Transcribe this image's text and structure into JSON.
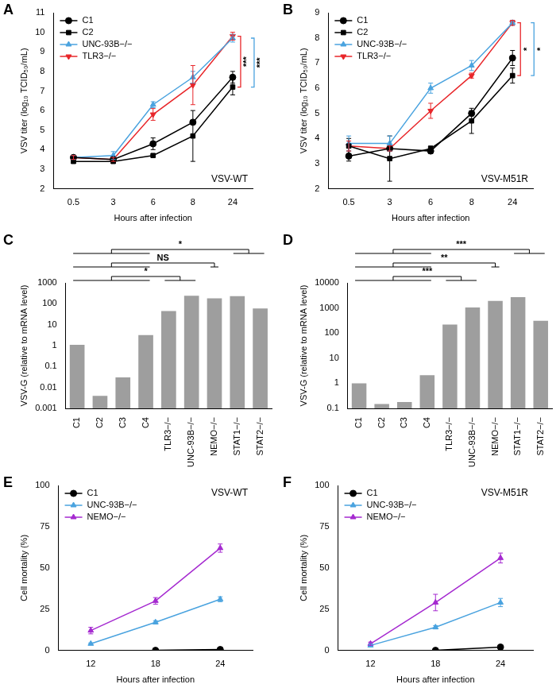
{
  "chart_data": [
    {
      "panel_label": "A",
      "type": "line",
      "title": "VSV-WT",
      "x_label": "Hours after infection",
      "y_label": "VSV titer (log₁₀ TCID₅₀/mL)",
      "categories": [
        "0.5",
        "3",
        "6",
        "8",
        "24"
      ],
      "ylim": [
        2,
        11
      ],
      "yticks": [
        2,
        3,
        4,
        5,
        6,
        7,
        8,
        9,
        10,
        11
      ],
      "grid": false,
      "legend": "top-left",
      "series": [
        {
          "name": "C1",
          "color": "#000000",
          "marker": "circle",
          "values": [
            3.6,
            3.5,
            4.3,
            5.4,
            7.7
          ],
          "errors": [
            0.1,
            0.1,
            0.3,
            0.1,
            0.3
          ]
        },
        {
          "name": "C2",
          "color": "#000000",
          "marker": "square",
          "values": [
            3.4,
            3.4,
            3.7,
            4.7,
            7.2
          ],
          "errors": [
            0.1,
            0.1,
            0.05,
            1.3,
            0.4
          ]
        },
        {
          "name": "UNC-93B−/−",
          "color": "#4aa3df",
          "marker": "triangle",
          "values": [
            3.6,
            3.7,
            6.3,
            7.7,
            9.7
          ],
          "errors": [
            0.1,
            0.2,
            0.15,
            0.3,
            0.2
          ]
        },
        {
          "name": "TLR3−/−",
          "color": "#e8262a",
          "marker": "triangle-down",
          "values": [
            3.6,
            3.5,
            5.8,
            7.3,
            9.8
          ],
          "errors": [
            0.1,
            0.1,
            0.3,
            1.0,
            0.2
          ]
        }
      ],
      "comparisons": [
        {
          "text": "***",
          "color": "#e8262a",
          "between": [
            "TLR3−/−",
            "C2"
          ]
        },
        {
          "text": "***",
          "color": "#4aa3df",
          "between": [
            "UNC-93B−/−",
            "C2"
          ]
        }
      ]
    },
    {
      "panel_label": "B",
      "type": "line",
      "title": "VSV-M51R",
      "x_label": "Hours after infection",
      "y_label": "VSV titer (log₁₀ TCID₅₀/mL)",
      "categories": [
        "0.5",
        "3",
        "6",
        "8",
        "24"
      ],
      "ylim": [
        2,
        9
      ],
      "yticks": [
        2,
        3,
        4,
        5,
        6,
        7,
        8,
        9
      ],
      "grid": false,
      "legend": "top-left",
      "series": [
        {
          "name": "C1",
          "color": "#000000",
          "marker": "circle",
          "values": [
            3.3,
            3.6,
            3.5,
            5.0,
            7.2
          ],
          "errors": [
            0.2,
            0.1,
            0.1,
            0.1,
            0.3
          ]
        },
        {
          "name": "C2",
          "color": "#000000",
          "marker": "square",
          "values": [
            3.7,
            3.2,
            3.6,
            4.7,
            6.5
          ],
          "errors": [
            0.3,
            0.9,
            0.1,
            0.5,
            0.3
          ]
        },
        {
          "name": "UNC-93B−/−",
          "color": "#4aa3df",
          "marker": "triangle",
          "values": [
            3.8,
            3.8,
            6.0,
            6.9,
            8.6
          ],
          "errors": [
            0.3,
            0.3,
            0.2,
            0.2,
            0.1
          ]
        },
        {
          "name": "TLR3−/−",
          "color": "#e8262a",
          "marker": "triangle-down",
          "values": [
            3.7,
            3.6,
            5.1,
            6.5,
            8.6
          ],
          "errors": [
            0.2,
            0.1,
            0.3,
            0.1,
            0.1
          ]
        }
      ],
      "comparisons": [
        {
          "text": "*",
          "color": "#e8262a",
          "between": [
            "TLR3−/−",
            "C2"
          ]
        },
        {
          "text": "*",
          "color": "#4aa3df",
          "between": [
            "UNC-93B−/−",
            "C2"
          ]
        }
      ]
    },
    {
      "panel_label": "C",
      "type": "bar",
      "y_label": "VSV-G (relative to mRNA level)",
      "log": "y",
      "grid": false,
      "color": "#9e9e9e",
      "categories": [
        "C1",
        "C2",
        "C3",
        "C4",
        "TLR3−/−",
        "UNC-93B−/−",
        "NEMO−/−",
        "STAT1−/−",
        "STAT2−/−"
      ],
      "values": [
        1.1,
        0.004,
        0.03,
        3.2,
        45,
        240,
        180,
        230,
        60
      ],
      "ylim": [
        0.001,
        1000
      ],
      "yticks": [
        0.001,
        0.01,
        0.1,
        1,
        10,
        100,
        1000
      ],
      "comparisons": [
        {
          "text": "*",
          "groups": [
            [
              "C1",
              "C2",
              "C3",
              "C4"
            ],
            [
              "TLR3−/−",
              "UNC-93B−/−"
            ]
          ]
        },
        {
          "text": "NS",
          "groups": [
            [
              "C1",
              "C2",
              "C3",
              "C4"
            ],
            [
              "NEMO−/−"
            ]
          ]
        },
        {
          "text": "*",
          "groups": [
            [
              "C1",
              "C2",
              "C3",
              "C4"
            ],
            [
              "STAT1−/−",
              "STAT2−/−"
            ]
          ]
        }
      ]
    },
    {
      "panel_label": "D",
      "type": "bar",
      "y_label": "VSV-G (relative to mRNA level)",
      "log": "y",
      "grid": false,
      "color": "#9e9e9e",
      "categories": [
        "C1",
        "C2",
        "C3",
        "C4",
        "TLR3−/−",
        "UNC-93B−/−",
        "NEMO−/−",
        "STAT1−/−",
        "STAT2−/−"
      ],
      "values": [
        1.0,
        0.15,
        0.18,
        2.1,
        220,
        1050,
        1900,
        2700,
        310
      ],
      "ylim": [
        0.1,
        10000
      ],
      "yticks": [
        0.1,
        1,
        10,
        100,
        1000,
        10000
      ],
      "comparisons": [
        {
          "text": "***",
          "groups": [
            [
              "C1",
              "C2",
              "C3",
              "C4"
            ],
            [
              "TLR3−/−",
              "UNC-93B−/−"
            ]
          ]
        },
        {
          "text": "**",
          "groups": [
            [
              "C1",
              "C2",
              "C3",
              "C4"
            ],
            [
              "NEMO−/−"
            ]
          ]
        },
        {
          "text": "***",
          "groups": [
            [
              "C1",
              "C2",
              "C3",
              "C4"
            ],
            [
              "STAT1−/−",
              "STAT2−/−"
            ]
          ]
        }
      ]
    },
    {
      "panel_label": "E",
      "type": "line",
      "title": "VSV-WT",
      "x_label": "Hours after infection",
      "y_label": "Cell mortality (%)",
      "categories": [
        "12",
        "18",
        "24"
      ],
      "ylim": [
        0,
        100
      ],
      "yticks": [
        0,
        25,
        50,
        75,
        100
      ],
      "grid": false,
      "legend": "top-left",
      "series": [
        {
          "name": "C1",
          "color": "#000000",
          "marker": "circle",
          "values": [
            null,
            0,
            0.5
          ],
          "errors": [
            null,
            0,
            0
          ]
        },
        {
          "name": "UNC-93B−/−",
          "color": "#4aa3df",
          "marker": "triangle",
          "values": [
            4,
            17,
            31
          ],
          "errors": [
            0.5,
            1,
            1.5
          ]
        },
        {
          "name": "NEMO−/−",
          "color": "#a52ad0",
          "marker": "triangle",
          "values": [
            12,
            30,
            62
          ],
          "errors": [
            2,
            2,
            2.5
          ]
        }
      ]
    },
    {
      "panel_label": "F",
      "type": "line",
      "title": "VSV-M51R",
      "x_label": "Hours after infection",
      "y_label": "Cell mortality (%)",
      "categories": [
        "12",
        "18",
        "24"
      ],
      "ylim": [
        0,
        100
      ],
      "yticks": [
        0,
        25,
        50,
        75,
        100
      ],
      "grid": false,
      "legend": "top-left",
      "series": [
        {
          "name": "C1",
          "color": "#000000",
          "marker": "circle",
          "values": [
            null,
            0,
            2
          ],
          "errors": [
            null,
            0,
            1
          ]
        },
        {
          "name": "UNC-93B−/−",
          "color": "#4aa3df",
          "marker": "triangle",
          "values": [
            3,
            14,
            29
          ],
          "errors": [
            0.5,
            1,
            2.5
          ]
        },
        {
          "name": "NEMO−/−",
          "color": "#a52ad0",
          "marker": "triangle",
          "values": [
            4,
            29,
            56
          ],
          "errors": [
            1,
            5,
            3
          ]
        }
      ]
    }
  ]
}
